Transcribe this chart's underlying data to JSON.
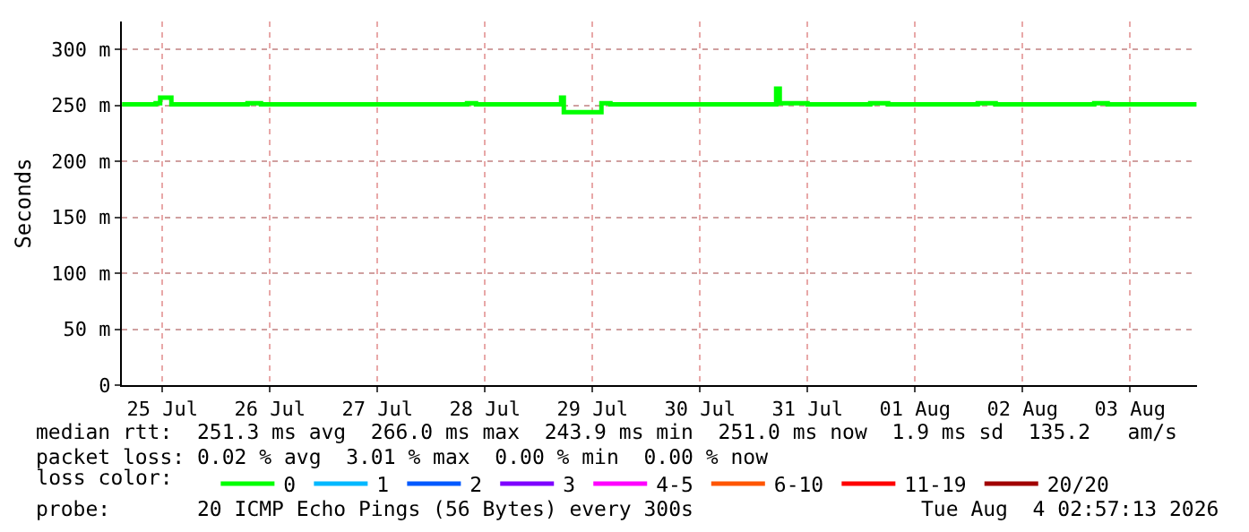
{
  "chart_data": {
    "type": "step",
    "ylabel": "Seconds",
    "legend_title": "loss color:",
    "legend": "bottom",
    "grid": true,
    "xlim": [
      "2026-07-25T02:57",
      "2026-08-04T02:57"
    ],
    "xticks": [
      {
        "value": "2026-07-25T12:00",
        "label": "25 Jul"
      },
      {
        "value": "2026-07-26T12:00",
        "label": "26 Jul"
      },
      {
        "value": "2026-07-27T12:00",
        "label": "27 Jul"
      },
      {
        "value": "2026-07-28T12:00",
        "label": "28 Jul"
      },
      {
        "value": "2026-07-29T12:00",
        "label": "29 Jul"
      },
      {
        "value": "2026-07-30T12:00",
        "label": "30 Jul"
      },
      {
        "value": "2026-07-31T12:00",
        "label": "31 Jul"
      },
      {
        "value": "2026-08-01T12:00",
        "label": "01 Aug"
      },
      {
        "value": "2026-08-02T12:00",
        "label": "02 Aug"
      },
      {
        "value": "2026-08-03T12:00",
        "label": "03 Aug"
      }
    ],
    "ylim": [
      0,
      325
    ],
    "yticks": [
      0,
      {
        "value": 50,
        "label": "50 m"
      },
      {
        "value": 100,
        "label": "100 m"
      },
      {
        "value": 150,
        "label": "150 m"
      },
      {
        "value": 200,
        "label": "200 m"
      },
      {
        "value": 250,
        "label": "250 m"
      },
      {
        "value": 300,
        "label": "300 m"
      }
    ],
    "x": [
      "2026-07-25T03:00",
      "2026-07-25T10:30",
      "2026-07-25T11:30",
      "2026-07-25T14:00",
      "2026-07-26T07:00",
      "2026-07-26T10:00",
      "2026-07-28T08:00",
      "2026-07-28T10:00",
      "2026-07-29T05:00",
      "2026-07-29T05:36",
      "2026-07-29T14:00",
      "2026-07-29T16:00",
      "2026-07-31T05:00",
      "2026-07-31T05:48",
      "2026-07-31T12:00",
      "2026-08-01T02:00",
      "2026-08-01T06:00",
      "2026-08-02T02:00",
      "2026-08-02T06:00",
      "2026-08-03T04:00",
      "2026-08-03T07:00",
      "2026-08-04T02:50"
    ],
    "series": [
      {
        "name": "0",
        "color": "#00ff00",
        "values": [
          251,
          252,
          257,
          251,
          252,
          251,
          252,
          251,
          257,
          244,
          252,
          251,
          265,
          252,
          251,
          252,
          251,
          252,
          251,
          252,
          251,
          251
        ]
      },
      {
        "name": "1",
        "color": "#00b8ff",
        "values": [
          null,
          null,
          null,
          null,
          null,
          null,
          null,
          null,
          null,
          null,
          null,
          null,
          null,
          null,
          null,
          null,
          null,
          null,
          null,
          null,
          null,
          null
        ]
      },
      {
        "name": "2",
        "color": "#0059ff",
        "values": [
          null,
          null,
          null,
          null,
          null,
          null,
          null,
          null,
          null,
          null,
          null,
          null,
          null,
          null,
          null,
          null,
          null,
          null,
          null,
          null,
          null,
          null
        ]
      },
      {
        "name": "3",
        "color": "#7e00ff",
        "values": [
          null,
          null,
          null,
          null,
          null,
          null,
          null,
          null,
          null,
          null,
          null,
          null,
          null,
          null,
          null,
          null,
          null,
          null,
          null,
          null,
          null,
          null
        ]
      },
      {
        "name": "4-5",
        "color": "#ff00ff",
        "values": [
          null,
          null,
          null,
          null,
          null,
          null,
          null,
          null,
          null,
          null,
          null,
          null,
          null,
          null,
          null,
          null,
          null,
          null,
          null,
          null,
          null,
          null
        ]
      },
      {
        "name": "6-10",
        "color": "#ff5500",
        "values": [
          null,
          null,
          null,
          null,
          null,
          null,
          null,
          null,
          null,
          null,
          null,
          null,
          null,
          null,
          null,
          null,
          null,
          null,
          null,
          null,
          null,
          null
        ]
      },
      {
        "name": "11-19",
        "color": "#ff0000",
        "values": [
          null,
          null,
          null,
          null,
          null,
          null,
          null,
          null,
          null,
          null,
          null,
          null,
          null,
          null,
          null,
          null,
          null,
          null,
          null,
          null,
          null,
          null
        ]
      },
      {
        "name": "20/20",
        "color": "#a10000",
        "values": [
          null,
          null,
          null,
          null,
          null,
          null,
          null,
          null,
          null,
          null,
          null,
          null,
          null,
          null,
          null,
          null,
          null,
          null,
          null,
          null,
          null,
          null
        ]
      }
    ],
    "annotations": [
      "median rtt:  251.3 ms avg  266.0 ms max  243.9 ms min  251.0 ms now  1.9 ms sd  135.2   am/s",
      "packet loss: 0.02 % avg  3.01 % max  0.00 % min  0.00 % now",
      "probe:       20 ICMP Echo Pings (56 Bytes) every 300s",
      "Tue Aug  4 02:57:13 2026"
    ]
  }
}
